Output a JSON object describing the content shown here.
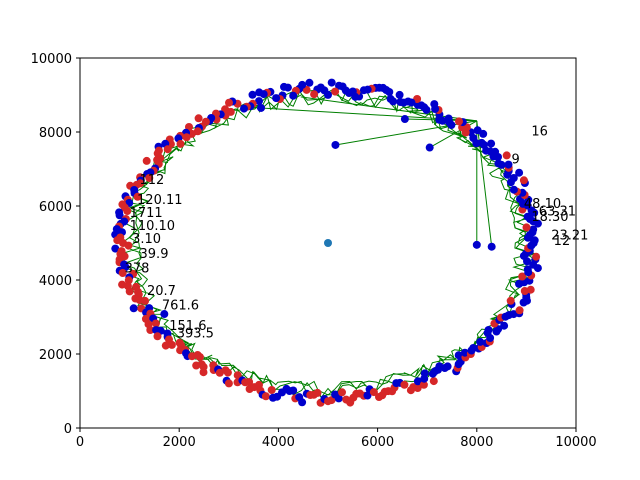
{
  "chart_data": {
    "type": "scatter",
    "title": "",
    "xlabel": "",
    "ylabel": "",
    "xlim": [
      0,
      10000
    ],
    "ylim": [
      0,
      10000
    ],
    "x_ticks": [
      0,
      2000,
      4000,
      6000,
      8000,
      10000
    ],
    "y_ticks": [
      0,
      2000,
      4000,
      6000,
      8000,
      10000
    ],
    "x_tick_labels": [
      "0",
      "2000",
      "4000",
      "6000",
      "8000",
      "10000"
    ],
    "y_tick_labels": [
      "0",
      "2000",
      "4000",
      "6000",
      "8000",
      "10000"
    ],
    "grid": false,
    "legend": "none",
    "center_point": {
      "x": 5000,
      "y": 5000,
      "color": "#1f77b4"
    },
    "colors": {
      "red": "#d62728",
      "blue": "#0000cc",
      "green": "#007f00"
    },
    "ring": {
      "center": [
        5000,
        5000
      ],
      "rx_inner": 4000,
      "ry_inner": 4000,
      "rx_outer": 4300,
      "ry_outer": 4350,
      "point_count": 360,
      "dominant_red_sector": "left and lower-left"
    },
    "route_lines_from": {
      "x": 8000,
      "y": 8300
    },
    "route_lines_to": [
      {
        "x": 5150,
        "y": 7650
      },
      {
        "x": 6550,
        "y": 8350
      },
      {
        "x": 7050,
        "y": 7580
      },
      {
        "x": 8000,
        "y": 4950
      },
      {
        "x": 8300,
        "y": 4900
      },
      {
        "x": 3650,
        "y": 8650
      },
      {
        "x": 4450,
        "y": 8950
      }
    ],
    "inner_blue_points": [
      {
        "x": 5150,
        "y": 7650
      },
      {
        "x": 6550,
        "y": 8350
      },
      {
        "x": 7050,
        "y": 7580
      },
      {
        "x": 8000,
        "y": 4950
      },
      {
        "x": 8300,
        "y": 4900
      },
      {
        "x": 8950,
        "y": 4650
      },
      {
        "x": 1700,
        "y": 3080
      },
      {
        "x": 5550,
        "y": 8950
      },
      {
        "x": 3650,
        "y": 8650
      }
    ],
    "annotations": [
      {
        "x": 1150,
        "y": 6050,
        "text": "120.11"
      },
      {
        "x": 1200,
        "y": 6600,
        "text": "112"
      },
      {
        "x": 1000,
        "y": 5700,
        "text": "1711"
      },
      {
        "x": 1000,
        "y": 5350,
        "text": "110.10"
      },
      {
        "x": 1050,
        "y": 5000,
        "text": "3.10"
      },
      {
        "x": 1200,
        "y": 4600,
        "text": "39.9"
      },
      {
        "x": 900,
        "y": 4200,
        "text": "378"
      },
      {
        "x": 1350,
        "y": 3600,
        "text": "20.7"
      },
      {
        "x": 1650,
        "y": 3200,
        "text": "761.6"
      },
      {
        "x": 1800,
        "y": 2650,
        "text": "151.6"
      },
      {
        "x": 1950,
        "y": 2450,
        "text": "393.5"
      },
      {
        "x": 8950,
        "y": 5950,
        "text": "48.10"
      },
      {
        "x": 9100,
        "y": 5600,
        "text": "18.30"
      },
      {
        "x": 9250,
        "y": 5750,
        "text": "63.31"
      },
      {
        "x": 9500,
        "y": 5100,
        "text": "23.21"
      },
      {
        "x": 9550,
        "y": 4950,
        "text": "12"
      },
      {
        "x": 9100,
        "y": 7900,
        "text": "16"
      },
      {
        "x": 8700,
        "y": 7150,
        "text": "9"
      }
    ]
  }
}
